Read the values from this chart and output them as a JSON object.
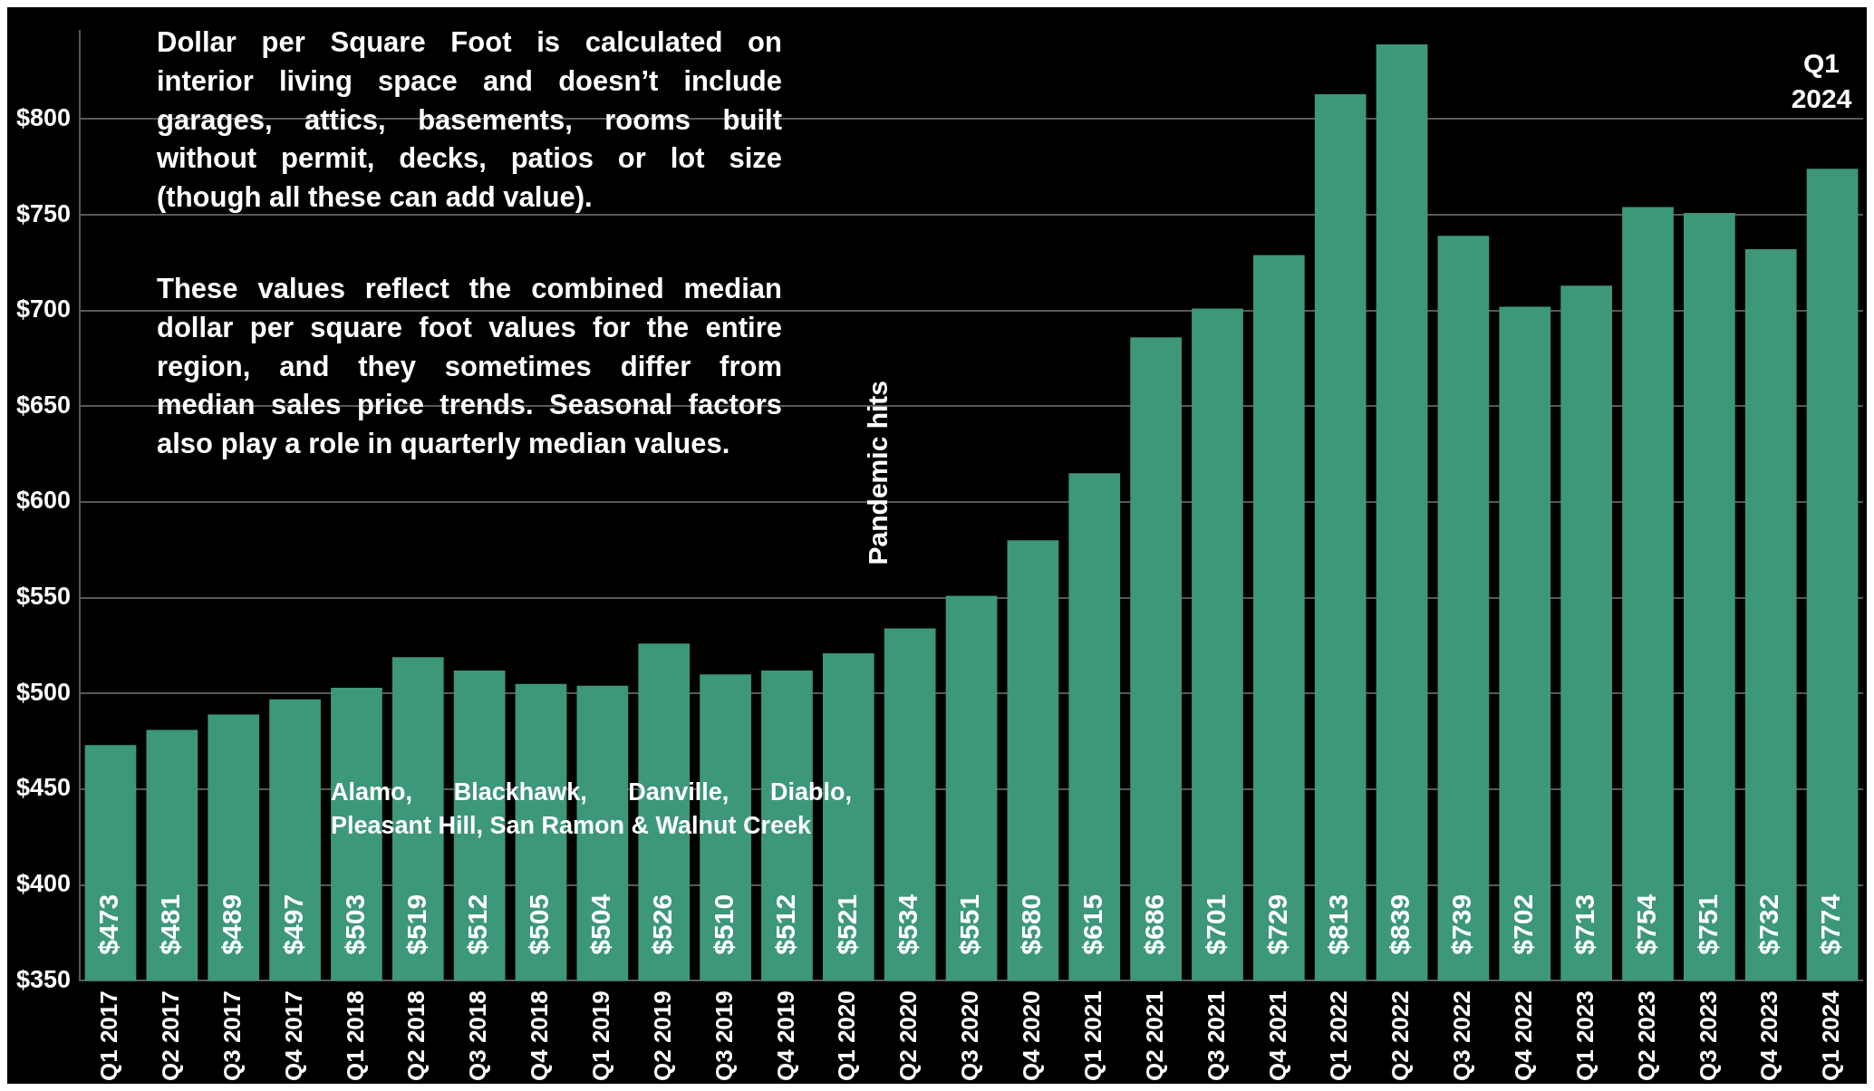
{
  "chart_data": {
    "type": "bar",
    "categories": [
      "Q1 2017",
      "Q2 2017",
      "Q3 2017",
      "Q4 2017",
      "Q1 2018",
      "Q2 2018",
      "Q3 2018",
      "Q4 2018",
      "Q1 2019",
      "Q2 2019",
      "Q3 2019",
      "Q4 2019",
      "Q1 2020",
      "Q2 2020",
      "Q3 2020",
      "Q4 2020",
      "Q1 2021",
      "Q2 2021",
      "Q3 2021",
      "Q4 2021",
      "Q1 2022",
      "Q2 2022",
      "Q3 2022",
      "Q4 2022",
      "Q1 2023",
      "Q2 2023",
      "Q3 2023",
      "Q4 2023",
      "Q1 2024"
    ],
    "values": [
      473,
      481,
      489,
      497,
      503,
      519,
      512,
      505,
      504,
      526,
      510,
      512,
      521,
      534,
      551,
      580,
      615,
      686,
      701,
      729,
      813,
      839,
      739,
      702,
      713,
      754,
      751,
      732,
      774
    ],
    "color": "#3d977a",
    "ylim": [
      350,
      846
    ],
    "yticks": [
      {
        "value": 350,
        "label": "$350"
      },
      {
        "value": 400,
        "label": "$400"
      },
      {
        "value": 450,
        "label": "$450"
      },
      {
        "value": 500,
        "label": "$500"
      },
      {
        "value": 550,
        "label": "$550"
      },
      {
        "value": 600,
        "label": "$600"
      },
      {
        "value": 650,
        "label": "$650"
      },
      {
        "value": 700,
        "label": "$700"
      },
      {
        "value": 750,
        "label": "$750"
      },
      {
        "value": 800,
        "label": "$800"
      }
    ],
    "value_labels": [
      "$473",
      "$481",
      "$489",
      "$497",
      "$503",
      "$519",
      "$512",
      "$505",
      "$504",
      "$526",
      "$510",
      "$512",
      "$521",
      "$534",
      "$551",
      "$580",
      "$615",
      "$686",
      "$701",
      "$729",
      "$813",
      "$839",
      "$739",
      "$702",
      "$713",
      "$754",
      "$751",
      "$732",
      "$774"
    ],
    "grid": "y",
    "legend": false,
    "annotations": [
      "Dollar per Square Foot is calculated on interior living space and doesn’t include garages, attics, basements, rooms built without permit, decks, patios or lot size (though all these can add value).",
      "These values reflect the combined median dollar per square foot values for the entire region, and they sometimes differ from median sales price trends. Seasonal factors also play a role in quarterly median values.",
      "Alamo, Blackhawk, Danville, Diablo, Pleasant Hill, San Ramon & Walnut Creek",
      "Pandemic hits",
      "Q1 2024"
    ]
  }
}
